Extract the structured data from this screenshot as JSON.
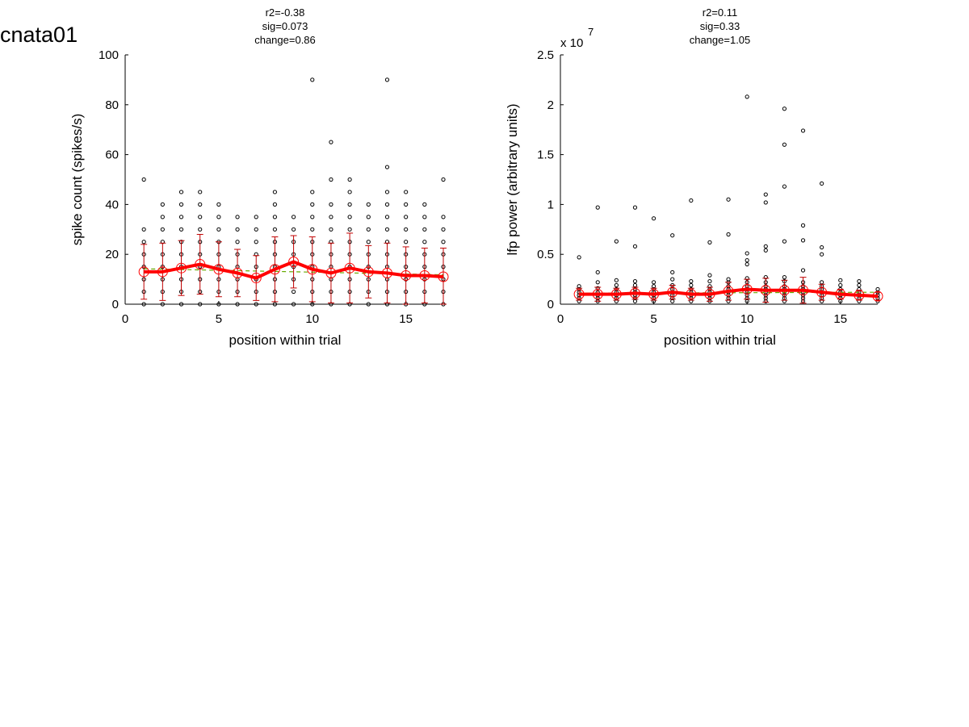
{
  "figure_label": "cnata01",
  "colors": {
    "mean_line": "#ff0000",
    "error_bar": "#c00000",
    "fit_line": "#66aa00",
    "points": "#000000",
    "axes": "#000000"
  },
  "chart_data": [
    {
      "type": "scatter",
      "title_lines": [
        "r2=-0.38",
        "sig=0.073",
        "change=0.86"
      ],
      "xlabel": "position within trial",
      "ylabel": "spike count (spikes/s)",
      "exponent_label": "",
      "xlim": [
        0,
        17
      ],
      "ylim": [
        0,
        100
      ],
      "xticks": [
        0,
        5,
        10,
        15
      ],
      "xtick_labels": [
        "0",
        "5",
        "10",
        "15"
      ],
      "yticks": [
        0,
        20,
        40,
        60,
        80,
        100
      ],
      "ytick_labels": [
        "0",
        "20",
        "40",
        "60",
        "80",
        "100"
      ],
      "points": [
        {
          "x": 1,
          "ys": [
            0,
            5,
            10,
            15,
            20,
            25,
            30,
            50
          ]
        },
        {
          "x": 2,
          "ys": [
            0,
            5,
            10,
            15,
            20,
            25,
            30,
            35,
            40
          ]
        },
        {
          "x": 3,
          "ys": [
            0,
            5,
            10,
            15,
            20,
            25,
            30,
            35,
            40,
            45
          ]
        },
        {
          "x": 4,
          "ys": [
            0,
            5,
            10,
            15,
            20,
            25,
            30,
            35,
            40,
            45
          ]
        },
        {
          "x": 5,
          "ys": [
            0,
            5,
            10,
            15,
            20,
            25,
            30,
            35,
            40
          ]
        },
        {
          "x": 6,
          "ys": [
            0,
            5,
            10,
            15,
            20,
            25,
            30,
            35
          ]
        },
        {
          "x": 7,
          "ys": [
            0,
            5,
            10,
            15,
            20,
            25,
            30,
            35
          ]
        },
        {
          "x": 8,
          "ys": [
            0,
            5,
            10,
            15,
            20,
            25,
            30,
            35,
            40,
            45
          ]
        },
        {
          "x": 9,
          "ys": [
            0,
            5,
            10,
            15,
            20,
            25,
            30,
            35
          ]
        },
        {
          "x": 10,
          "ys": [
            0,
            5,
            10,
            15,
            20,
            25,
            30,
            35,
            40,
            45,
            90
          ]
        },
        {
          "x": 11,
          "ys": [
            0,
            5,
            10,
            15,
            20,
            25,
            30,
            35,
            40,
            50,
            65
          ]
        },
        {
          "x": 12,
          "ys": [
            0,
            5,
            10,
            15,
            20,
            25,
            30,
            35,
            40,
            45,
            50
          ]
        },
        {
          "x": 13,
          "ys": [
            0,
            5,
            10,
            15,
            20,
            25,
            30,
            35,
            40
          ]
        },
        {
          "x": 14,
          "ys": [
            0,
            5,
            10,
            15,
            20,
            25,
            30,
            35,
            40,
            45,
            55,
            90
          ]
        },
        {
          "x": 15,
          "ys": [
            0,
            5,
            10,
            15,
            20,
            25,
            30,
            35,
            40,
            45
          ]
        },
        {
          "x": 16,
          "ys": [
            0,
            5,
            10,
            15,
            20,
            25,
            30,
            35,
            40
          ]
        },
        {
          "x": 17,
          "ys": [
            0,
            5,
            10,
            15,
            20,
            25,
            30,
            35,
            50
          ]
        }
      ],
      "series": [
        {
          "kind": "mean",
          "x": [
            1,
            2,
            3,
            4,
            5,
            6,
            7,
            8,
            9,
            10,
            11,
            12,
            13,
            14,
            15,
            16,
            17
          ],
          "values": [
            13,
            13,
            14.5,
            16,
            14,
            12.5,
            10.5,
            14,
            17,
            14,
            12.5,
            14.5,
            13,
            12.5,
            11.5,
            11.5,
            11
          ],
          "sd": [
            11,
            11.5,
            11,
            12,
            11,
            9.5,
            9,
            13,
            10.5,
            13,
            12,
            14,
            10.5,
            12,
            11.5,
            11,
            11.5
          ]
        },
        {
          "kind": "fit",
          "x": [
            1,
            17
          ],
          "values": [
            14.2,
            11.8
          ]
        }
      ]
    },
    {
      "type": "scatter",
      "title_lines": [
        "r2=0.11",
        "sig=0.33",
        "change=1.05"
      ],
      "xlabel": "position within trial",
      "ylabel": "lfp power (arbitrary units)",
      "exponent_label": "x 10",
      "exponent_value": "7",
      "xlim": [
        0,
        17
      ],
      "ylim": [
        0,
        2.5
      ],
      "xticks": [
        0,
        5,
        10,
        15
      ],
      "xtick_labels": [
        "0",
        "5",
        "10",
        "15"
      ],
      "yticks": [
        0,
        0.5,
        1,
        1.5,
        2,
        2.5
      ],
      "ytick_labels": [
        "0",
        "0.5",
        "1",
        "1.5",
        "2",
        "2.5"
      ],
      "points": [
        {
          "x": 1,
          "ys": [
            0.03,
            0.06,
            0.09,
            0.12,
            0.15,
            0.18,
            0.47
          ]
        },
        {
          "x": 2,
          "ys": [
            0.03,
            0.06,
            0.09,
            0.12,
            0.16,
            0.22,
            0.32,
            0.97
          ]
        },
        {
          "x": 3,
          "ys": [
            0.03,
            0.06,
            0.09,
            0.12,
            0.15,
            0.19,
            0.24,
            0.63
          ]
        },
        {
          "x": 4,
          "ys": [
            0.03,
            0.06,
            0.09,
            0.12,
            0.15,
            0.19,
            0.23,
            0.58,
            0.97
          ]
        },
        {
          "x": 5,
          "ys": [
            0.03,
            0.06,
            0.09,
            0.12,
            0.15,
            0.18,
            0.22,
            0.86
          ]
        },
        {
          "x": 6,
          "ys": [
            0.03,
            0.06,
            0.09,
            0.12,
            0.15,
            0.19,
            0.25,
            0.32,
            0.69
          ]
        },
        {
          "x": 7,
          "ys": [
            0.03,
            0.06,
            0.09,
            0.12,
            0.15,
            0.19,
            0.23,
            1.04
          ]
        },
        {
          "x": 8,
          "ys": [
            0.03,
            0.06,
            0.09,
            0.12,
            0.15,
            0.18,
            0.23,
            0.29,
            0.62
          ]
        },
        {
          "x": 9,
          "ys": [
            0.03,
            0.06,
            0.09,
            0.12,
            0.15,
            0.18,
            0.22,
            0.25,
            0.7,
            1.05
          ]
        },
        {
          "x": 10,
          "ys": [
            0.03,
            0.06,
            0.09,
            0.12,
            0.15,
            0.18,
            0.22,
            0.26,
            0.4,
            0.44,
            0.51,
            2.08
          ]
        },
        {
          "x": 11,
          "ys": [
            0.03,
            0.06,
            0.09,
            0.12,
            0.15,
            0.18,
            0.22,
            0.27,
            0.54,
            0.58,
            1.02,
            1.1
          ]
        },
        {
          "x": 12,
          "ys": [
            0.03,
            0.06,
            0.09,
            0.12,
            0.15,
            0.18,
            0.23,
            0.27,
            0.63,
            1.18,
            1.6,
            1.96
          ]
        },
        {
          "x": 13,
          "ys": [
            0.03,
            0.06,
            0.09,
            0.12,
            0.15,
            0.18,
            0.22,
            0.34,
            0.64,
            0.79,
            1.74
          ]
        },
        {
          "x": 14,
          "ys": [
            0.03,
            0.06,
            0.09,
            0.12,
            0.15,
            0.18,
            0.22,
            0.5,
            0.57,
            1.21
          ]
        },
        {
          "x": 15,
          "ys": [
            0.03,
            0.06,
            0.09,
            0.12,
            0.15,
            0.19,
            0.24
          ]
        },
        {
          "x": 16,
          "ys": [
            0.03,
            0.06,
            0.09,
            0.12,
            0.15,
            0.19,
            0.23
          ]
        },
        {
          "x": 17,
          "ys": [
            0.03,
            0.06,
            0.09,
            0.12,
            0.15
          ]
        }
      ],
      "series": [
        {
          "kind": "mean",
          "x": [
            1,
            2,
            3,
            4,
            5,
            6,
            7,
            8,
            9,
            10,
            11,
            12,
            13,
            14,
            15,
            16,
            17
          ],
          "values": [
            0.1,
            0.1,
            0.1,
            0.11,
            0.1,
            0.12,
            0.1,
            0.1,
            0.13,
            0.15,
            0.14,
            0.14,
            0.14,
            0.12,
            0.1,
            0.09,
            0.08
          ],
          "sd": [
            0.06,
            0.07,
            0.06,
            0.06,
            0.06,
            0.07,
            0.06,
            0.07,
            0.09,
            0.1,
            0.12,
            0.1,
            0.13,
            0.08,
            0.05,
            0.05,
            0.04
          ]
        },
        {
          "kind": "fit",
          "x": [
            1,
            17
          ],
          "values": [
            0.11,
            0.12
          ]
        }
      ]
    }
  ]
}
